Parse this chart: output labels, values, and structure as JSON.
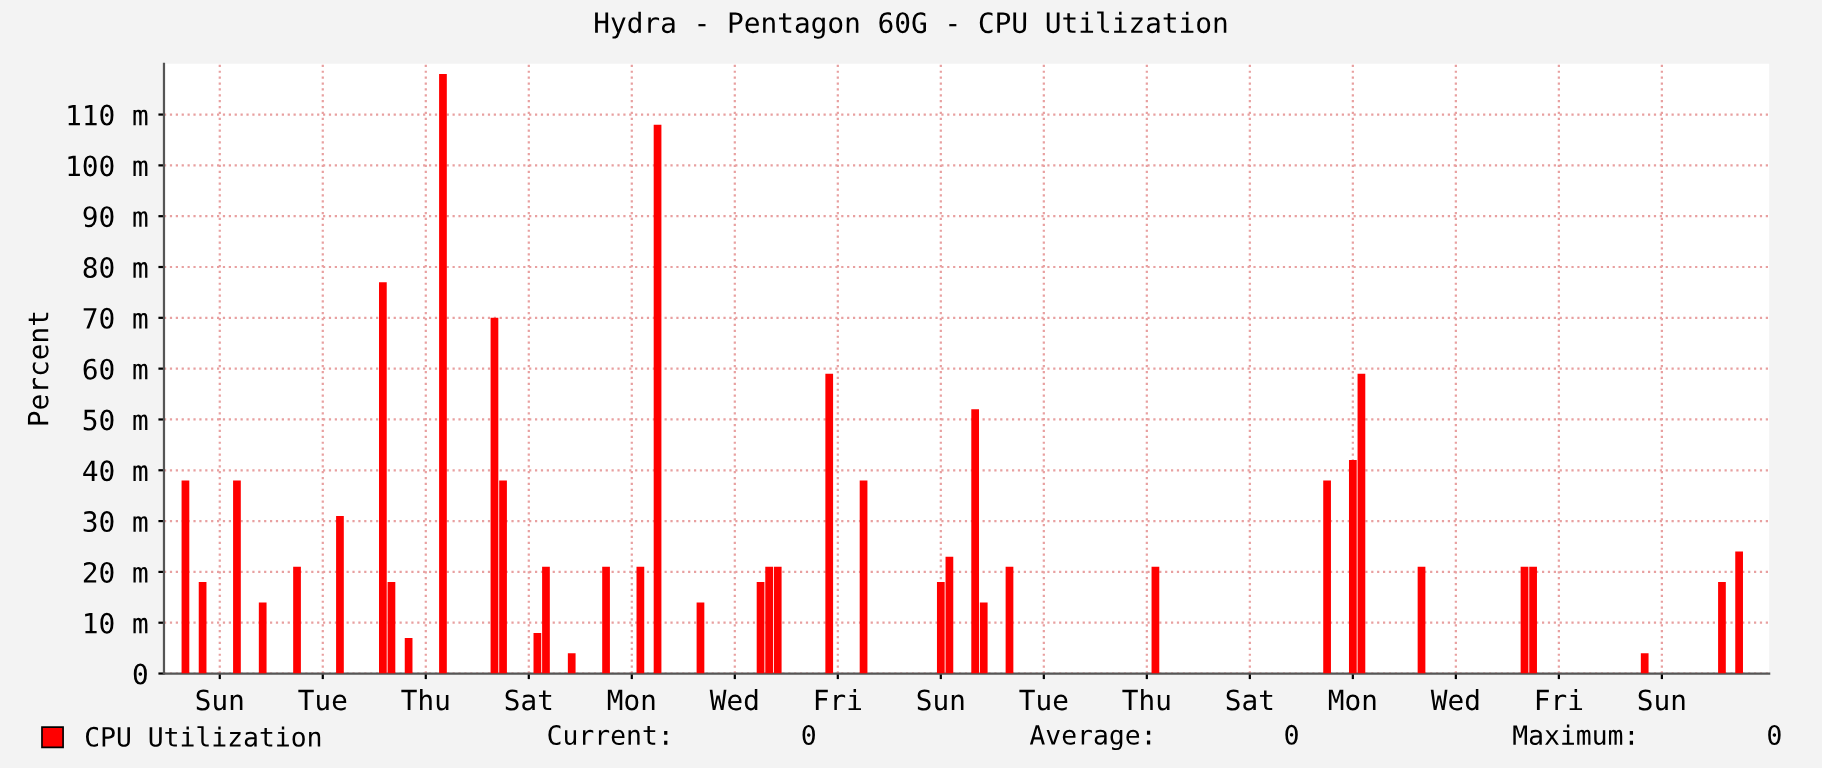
{
  "chart_data": {
    "type": "bar",
    "title": "Hydra - Pentagon 60G - CPU Utilization",
    "ylabel": "Percent",
    "categories": [
      null,
      null,
      null,
      null,
      null,
      null,
      "Sun",
      null,
      null,
      null,
      null,
      null,
      null,
      null,
      null,
      null,
      null,
      null,
      "Tue",
      null,
      null,
      null,
      null,
      null,
      null,
      null,
      null,
      null,
      null,
      null,
      "Thu",
      null,
      null,
      null,
      null,
      null,
      null,
      null,
      null,
      null,
      null,
      null,
      "Sat",
      null,
      null,
      null,
      null,
      null,
      null,
      null,
      null,
      null,
      null,
      null,
      "Mon",
      null,
      null,
      null,
      null,
      null,
      null,
      null,
      null,
      null,
      null,
      null,
      "Wed",
      null,
      null,
      null,
      null,
      null,
      null,
      null,
      null,
      null,
      null,
      null,
      "Fri",
      null,
      null,
      null,
      null,
      null,
      null,
      null,
      null,
      null,
      null,
      null,
      "Sun",
      null,
      null,
      null,
      null,
      null,
      null,
      null,
      null,
      null,
      null,
      null,
      "Tue",
      null,
      null,
      null,
      null,
      null,
      null,
      null,
      null,
      null,
      null,
      null,
      "Thu",
      null,
      null,
      null,
      null,
      null,
      null,
      null,
      null,
      null,
      null,
      null,
      "Sat",
      null,
      null,
      null,
      null,
      null,
      null,
      null,
      null,
      null,
      null,
      null,
      "Mon",
      null,
      null,
      null,
      null,
      null,
      null,
      null,
      null,
      null,
      null,
      null,
      "Wed",
      null,
      null,
      null,
      null,
      null,
      null,
      null,
      null,
      null,
      null,
      null,
      "Fri",
      null,
      null,
      null,
      null,
      null,
      null,
      null,
      null,
      null,
      null,
      null,
      "Sun",
      null,
      null,
      null,
      null,
      null,
      null,
      null,
      null,
      null,
      null,
      null,
      null
    ],
    "series": [
      {
        "name": "CPU Utilization",
        "color": "#ff0000",
        "values": [
          0,
          0,
          38,
          0,
          18,
          0,
          0,
          0,
          38,
          0,
          0,
          14,
          0,
          0,
          0,
          21,
          0,
          0,
          0,
          0,
          31,
          0,
          0,
          0,
          0,
          77,
          18,
          0,
          7,
          0,
          0,
          0,
          118,
          0,
          0,
          0,
          0,
          0,
          70,
          38,
          0,
          0,
          0,
          8,
          21,
          0,
          0,
          4,
          0,
          0,
          0,
          21,
          0,
          0,
          0,
          21,
          0,
          108,
          0,
          0,
          0,
          0,
          14,
          0,
          0,
          0,
          0,
          0,
          0,
          18,
          21,
          21,
          0,
          0,
          0,
          0,
          0,
          59,
          0,
          0,
          0,
          38,
          0,
          0,
          0,
          0,
          0,
          0,
          0,
          0,
          18,
          23,
          0,
          0,
          52,
          14,
          0,
          0,
          21,
          0,
          0,
          0,
          0,
          0,
          0,
          0,
          0,
          0,
          0,
          0,
          0,
          0,
          0,
          0,
          0,
          21,
          0,
          0,
          0,
          0,
          0,
          0,
          0,
          0,
          0,
          0,
          0,
          0,
          0,
          0,
          0,
          0,
          0,
          0,
          0,
          38,
          0,
          0,
          42,
          59,
          0,
          0,
          0,
          0,
          0,
          0,
          21,
          0,
          0,
          0,
          0,
          0,
          0,
          0,
          0,
          0,
          0,
          0,
          21,
          21,
          0,
          0,
          0,
          0,
          0,
          0,
          0,
          0,
          0,
          0,
          0,
          0,
          4,
          0,
          0,
          0,
          0,
          0,
          0,
          0,
          0,
          18,
          0,
          24,
          0,
          0,
          0
        ]
      }
    ],
    "ylim": [
      0,
      120
    ],
    "yticks": [
      0,
      {
        "value": 10,
        "label": "10 m"
      },
      {
        "value": 20,
        "label": "20 m"
      },
      {
        "value": 30,
        "label": "30 m"
      },
      {
        "value": 40,
        "label": "40 m"
      },
      {
        "value": 50,
        "label": "50 m"
      },
      {
        "value": 60,
        "label": "60 m"
      },
      {
        "value": 70,
        "label": "70 m"
      },
      {
        "value": 80,
        "label": "80 m"
      },
      {
        "value": 90,
        "label": "90 m"
      },
      {
        "value": 100,
        "label": "100 m"
      },
      {
        "value": 110,
        "label": "110 m"
      }
    ],
    "grid": true,
    "legend": "bottom left",
    "annotations": [
      "Current:        0",
      "Average:        0",
      "Maximum:        0"
    ]
  }
}
